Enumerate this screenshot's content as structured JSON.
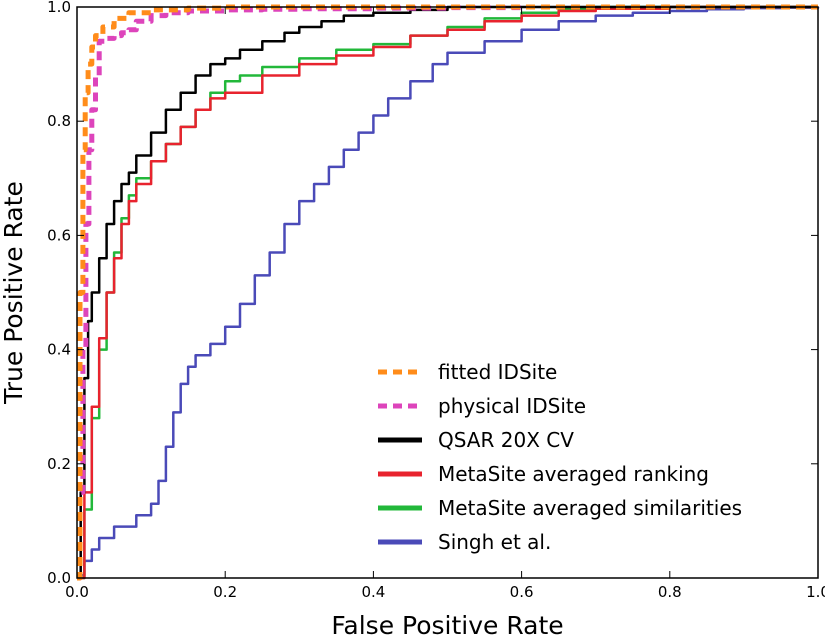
{
  "chart_data": {
    "type": "line",
    "title": "",
    "xlabel": "False Positive Rate",
    "ylabel": "True Positive Rate",
    "xlim": [
      0.0,
      1.0
    ],
    "ylim": [
      0.0,
      1.0
    ],
    "xticks": [
      "0.0",
      "0.2",
      "0.4",
      "0.6",
      "0.8",
      "1.0"
    ],
    "yticks": [
      "0.0",
      "0.2",
      "0.4",
      "0.6",
      "0.8",
      "1.0"
    ],
    "grid": false,
    "legend_position": "lower-right",
    "series": [
      {
        "name": "fitted IDSite",
        "color": "#ff8c1a",
        "dash": "dashed",
        "x": [
          0.0,
          0.004,
          0.008,
          0.011,
          0.015,
          0.02,
          0.025,
          0.035,
          0.05,
          0.07,
          0.1,
          0.15,
          0.2,
          0.3,
          0.5,
          0.7,
          1.0
        ],
        "y": [
          0.0,
          0.5,
          0.75,
          0.85,
          0.9,
          0.93,
          0.95,
          0.965,
          0.98,
          0.99,
          0.995,
          0.998,
          1.0,
          1.0,
          1.0,
          1.0,
          1.0
        ]
      },
      {
        "name": "physical IDSite",
        "color": "#dd44bb",
        "dash": "dashed",
        "x": [
          0.0,
          0.004,
          0.008,
          0.012,
          0.016,
          0.02,
          0.025,
          0.03,
          0.04,
          0.05,
          0.06,
          0.07,
          0.08,
          0.1,
          0.12,
          0.15,
          0.2,
          0.25,
          0.3,
          0.4,
          0.5,
          0.6,
          0.8,
          1.0
        ],
        "y": [
          0.0,
          0.15,
          0.4,
          0.62,
          0.75,
          0.82,
          0.88,
          0.94,
          0.945,
          0.95,
          0.955,
          0.96,
          0.975,
          0.985,
          0.99,
          0.993,
          0.995,
          0.996,
          0.997,
          0.998,
          0.999,
          1.0,
          1.0,
          1.0
        ]
      },
      {
        "name": "QSAR 20X CV",
        "color": "#000000",
        "dash": "solid",
        "x": [
          0.0,
          0.005,
          0.01,
          0.015,
          0.02,
          0.03,
          0.04,
          0.05,
          0.06,
          0.07,
          0.08,
          0.1,
          0.12,
          0.14,
          0.16,
          0.18,
          0.2,
          0.22,
          0.25,
          0.28,
          0.3,
          0.33,
          0.36,
          0.4,
          0.45,
          0.5,
          0.55,
          0.6,
          0.7,
          0.8,
          1.0
        ],
        "y": [
          0.0,
          0.15,
          0.35,
          0.45,
          0.5,
          0.56,
          0.62,
          0.66,
          0.69,
          0.71,
          0.74,
          0.78,
          0.82,
          0.85,
          0.88,
          0.9,
          0.91,
          0.925,
          0.94,
          0.955,
          0.965,
          0.975,
          0.985,
          0.99,
          0.995,
          1.0,
          1.0,
          1.0,
          1.0,
          1.0,
          1.0
        ]
      },
      {
        "name": "MetaSite averaged ranking",
        "color": "#e8232e",
        "dash": "solid",
        "x": [
          0.0,
          0.01,
          0.02,
          0.03,
          0.04,
          0.05,
          0.06,
          0.07,
          0.08,
          0.1,
          0.12,
          0.14,
          0.16,
          0.18,
          0.2,
          0.25,
          0.3,
          0.35,
          0.4,
          0.45,
          0.5,
          0.55,
          0.6,
          0.65,
          0.7,
          0.8,
          0.9,
          1.0
        ],
        "y": [
          0.0,
          0.15,
          0.3,
          0.42,
          0.5,
          0.56,
          0.62,
          0.66,
          0.69,
          0.73,
          0.76,
          0.79,
          0.82,
          0.84,
          0.85,
          0.88,
          0.9,
          0.915,
          0.93,
          0.95,
          0.96,
          0.975,
          0.985,
          0.993,
          0.997,
          1.0,
          1.0,
          1.0
        ]
      },
      {
        "name": "MetaSite averaged similarities",
        "color": "#22b83a",
        "dash": "solid",
        "x": [
          0.0,
          0.01,
          0.02,
          0.03,
          0.04,
          0.05,
          0.06,
          0.07,
          0.08,
          0.1,
          0.12,
          0.14,
          0.16,
          0.18,
          0.2,
          0.22,
          0.25,
          0.3,
          0.35,
          0.4,
          0.45,
          0.5,
          0.55,
          0.6,
          0.65,
          0.7,
          0.8,
          0.9,
          1.0
        ],
        "y": [
          0.0,
          0.12,
          0.28,
          0.4,
          0.5,
          0.57,
          0.63,
          0.67,
          0.7,
          0.73,
          0.76,
          0.79,
          0.82,
          0.85,
          0.87,
          0.88,
          0.895,
          0.91,
          0.925,
          0.935,
          0.95,
          0.965,
          0.98,
          0.99,
          0.997,
          1.0,
          1.0,
          1.0,
          1.0
        ]
      },
      {
        "name": "Singh et al.",
        "color": "#4a4ab8",
        "dash": "solid",
        "x": [
          0.0,
          0.005,
          0.01,
          0.02,
          0.03,
          0.05,
          0.08,
          0.1,
          0.11,
          0.12,
          0.13,
          0.14,
          0.15,
          0.16,
          0.18,
          0.2,
          0.22,
          0.24,
          0.26,
          0.28,
          0.3,
          0.32,
          0.34,
          0.36,
          0.38,
          0.4,
          0.42,
          0.45,
          0.48,
          0.5,
          0.55,
          0.6,
          0.65,
          0.7,
          0.75,
          0.8,
          0.85,
          0.9,
          0.95,
          1.0
        ],
        "y": [
          0.0,
          0.005,
          0.03,
          0.05,
          0.07,
          0.09,
          0.11,
          0.13,
          0.17,
          0.23,
          0.29,
          0.34,
          0.37,
          0.39,
          0.41,
          0.44,
          0.48,
          0.53,
          0.57,
          0.62,
          0.66,
          0.69,
          0.72,
          0.75,
          0.78,
          0.81,
          0.84,
          0.87,
          0.9,
          0.92,
          0.94,
          0.96,
          0.975,
          0.985,
          0.99,
          0.993,
          0.996,
          0.998,
          0.999,
          1.0
        ]
      }
    ]
  }
}
